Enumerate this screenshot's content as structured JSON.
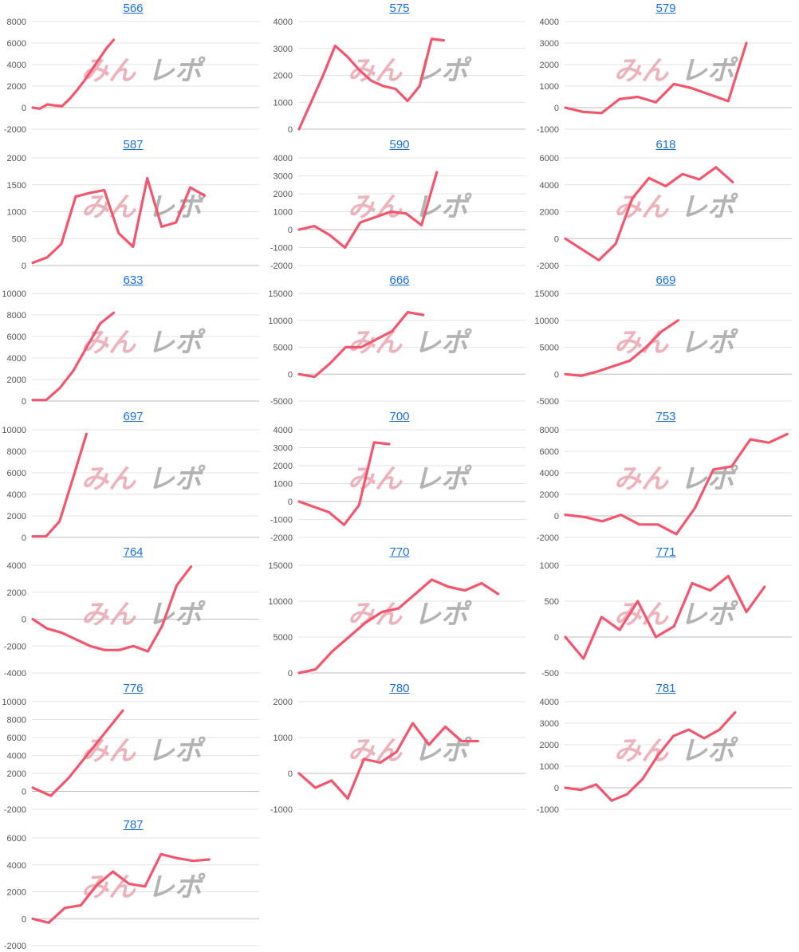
{
  "colors": {
    "line": "#f2566e",
    "title": "#1e6fd0",
    "grid": "#e3e3e3",
    "zero": "#bdbdbd",
    "tick": "#555555",
    "wm_pink": "#e89aa8",
    "wm_gray": "#9a9a9a"
  },
  "watermark": {
    "part1": "みん",
    "part2": "レポ"
  },
  "chart_data": [
    {
      "title": "566",
      "type": "line",
      "yticks": [
        8000,
        6000,
        4000,
        2000,
        0,
        -2000
      ],
      "ylim": [
        -2000,
        8000
      ],
      "xmax": 30,
      "values": [
        0,
        -100,
        300,
        200,
        150,
        800,
        1600,
        2500,
        3500,
        4500,
        5500,
        6300
      ]
    },
    {
      "title": "575",
      "type": "line",
      "yticks": [
        4000,
        3000,
        2000,
        1000,
        0
      ],
      "ylim": [
        0,
        4000
      ],
      "xmax": 30,
      "values": [
        0,
        1000,
        2000,
        3100,
        2700,
        2200,
        1800,
        1600,
        1500,
        1050,
        1600,
        3350,
        3300
      ]
    },
    {
      "title": "579",
      "type": "line",
      "yticks": [
        4000,
        3000,
        2000,
        1000,
        0,
        -1000
      ],
      "ylim": [
        -1000,
        4000
      ],
      "xmax": 30,
      "values": [
        0,
        -200,
        -250,
        400,
        500,
        250,
        1100,
        900,
        600,
        300,
        3000
      ]
    },
    {
      "title": "587",
      "type": "line",
      "yticks": [
        2000,
        1500,
        1000,
        500,
        0
      ],
      "ylim": [
        0,
        2000
      ],
      "xmax": 30,
      "values": [
        50,
        150,
        400,
        1280,
        1350,
        1400,
        600,
        350,
        1620,
        720,
        800,
        1450,
        1300
      ]
    },
    {
      "title": "590",
      "type": "line",
      "yticks": [
        4000,
        3000,
        2000,
        1000,
        0,
        -1000,
        -2000
      ],
      "ylim": [
        -2000,
        4000
      ],
      "xmax": 30,
      "values": [
        0,
        200,
        -300,
        -1000,
        400,
        700,
        1000,
        900,
        250,
        3200
      ]
    },
    {
      "title": "618",
      "type": "line",
      "yticks": [
        6000,
        4000,
        2000,
        0,
        -2000
      ],
      "ylim": [
        -2000,
        6000
      ],
      "xmax": 30,
      "values": [
        0,
        -800,
        -1600,
        -400,
        3000,
        4500,
        3900,
        4800,
        4400,
        5300,
        4200
      ]
    },
    {
      "title": "633",
      "type": "line",
      "yticks": [
        10000,
        8000,
        6000,
        4000,
        2000,
        0
      ],
      "ylim": [
        0,
        10000
      ],
      "xmax": 30,
      "values": [
        100,
        100,
        1200,
        2800,
        5000,
        7200,
        8200
      ]
    },
    {
      "title": "666",
      "type": "line",
      "yticks": [
        15000,
        10000,
        5000,
        0,
        -5000
      ],
      "ylim": [
        -5000,
        15000
      ],
      "xmax": 30,
      "values": [
        0,
        -500,
        2000,
        5000,
        5000,
        6500,
        8000,
        11500,
        11000
      ]
    },
    {
      "title": "669",
      "type": "line",
      "yticks": [
        15000,
        10000,
        5000,
        0,
        -5000
      ],
      "ylim": [
        -5000,
        15000
      ],
      "xmax": 30,
      "values": [
        0,
        -300,
        500,
        1500,
        2500,
        5000,
        8000,
        10000
      ]
    },
    {
      "title": "697",
      "type": "line",
      "yticks": [
        10000,
        8000,
        6000,
        4000,
        2000,
        0
      ],
      "ylim": [
        0,
        10000
      ],
      "xmax": 30,
      "values": [
        100,
        100,
        1500,
        5500,
        9600
      ]
    },
    {
      "title": "700",
      "type": "line",
      "yticks": [
        4000,
        3000,
        2000,
        1000,
        0,
        -1000,
        -2000
      ],
      "ylim": [
        -2000,
        4000
      ],
      "xmax": 30,
      "values": [
        0,
        -300,
        -600,
        -1300,
        -200,
        3300,
        3200
      ]
    },
    {
      "title": "753",
      "type": "line",
      "yticks": [
        8000,
        6000,
        4000,
        2000,
        0,
        -2000
      ],
      "ylim": [
        -2000,
        8000
      ],
      "xmax": 30,
      "values": [
        100,
        -100,
        -500,
        100,
        -800,
        -800,
        -1700,
        700,
        4300,
        4600,
        7100,
        6800,
        7600
      ]
    },
    {
      "title": "764",
      "type": "line",
      "yticks": [
        4000,
        2000,
        0,
        -2000,
        -4000
      ],
      "ylim": [
        -4000,
        4000
      ],
      "xmax": 30,
      "values": [
        0,
        -700,
        -1000,
        -1500,
        -2000,
        -2300,
        -2300,
        -2000,
        -2400,
        -500,
        2500,
        3900
      ]
    },
    {
      "title": "770",
      "type": "line",
      "yticks": [
        15000,
        10000,
        5000,
        0
      ],
      "ylim": [
        0,
        15000
      ],
      "xmax": 30,
      "values": [
        0,
        500,
        3000,
        5000,
        7000,
        8500,
        9000,
        11000,
        13000,
        12000,
        11500,
        12500,
        11000
      ]
    },
    {
      "title": "771",
      "type": "line",
      "yticks": [
        1000,
        500,
        0,
        -500
      ],
      "ylim": [
        -500,
        1000
      ],
      "xmax": 30,
      "values": [
        0,
        -300,
        280,
        100,
        500,
        0,
        150,
        750,
        650,
        850,
        350,
        700
      ]
    },
    {
      "title": "776",
      "type": "line",
      "yticks": [
        10000,
        8000,
        6000,
        4000,
        2000,
        0,
        -2000
      ],
      "ylim": [
        -2000,
        10000
      ],
      "xmax": 30,
      "values": [
        400,
        -500,
        1500,
        4000,
        6500,
        9000
      ]
    },
    {
      "title": "780",
      "type": "line",
      "yticks": [
        2000,
        1000,
        0,
        -1000
      ],
      "ylim": [
        -1000,
        2000
      ],
      "xmax": 30,
      "values": [
        0,
        -400,
        -200,
        -700,
        400,
        300,
        600,
        1400,
        800,
        1300,
        900,
        900
      ]
    },
    {
      "title": "781",
      "type": "line",
      "yticks": [
        4000,
        3000,
        2000,
        1000,
        0,
        -1000
      ],
      "ylim": [
        -1000,
        4000
      ],
      "xmax": 30,
      "values": [
        0,
        -100,
        150,
        -600,
        -300,
        400,
        1500,
        2400,
        2700,
        2300,
        2700,
        3500
      ]
    },
    {
      "title": "787",
      "type": "line",
      "yticks": [
        6000,
        4000,
        2000,
        0,
        -2000
      ],
      "ylim": [
        -2000,
        6000
      ],
      "xmax": 30,
      "values": [
        0,
        -300,
        800,
        1000,
        2500,
        3500,
        2600,
        2400,
        4800,
        4500,
        4300,
        4400
      ]
    }
  ]
}
